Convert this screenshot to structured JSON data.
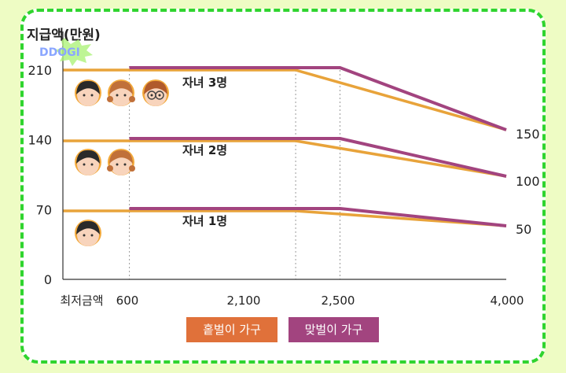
{
  "watermark": "DDOGI",
  "chart_data": {
    "type": "line",
    "ylabel": "지급액(만원)",
    "y_ticks_left": [
      "0",
      "70",
      "140",
      "210"
    ],
    "y_ticks_right": [
      "50",
      "100",
      "150"
    ],
    "x_ticks": [
      "최저금액",
      "600",
      "2,100",
      "2,500",
      "4,000"
    ],
    "xlim": [
      0,
      4000
    ],
    "ylim": [
      0,
      230
    ],
    "legend": [
      {
        "name": "홑벌이 가구",
        "color": "#e8a33a",
        "swatch": "#e0713a"
      },
      {
        "name": "맞벌이 가구",
        "color": "#a2447f",
        "swatch": "#a2447f"
      }
    ],
    "groups": [
      {
        "label": "자녀 3명",
        "children": [
          "boy",
          "girl",
          "glasses"
        ],
        "series": [
          {
            "name": "홑벌이 가구",
            "x": [
              0,
              2100,
              4000
            ],
            "y": [
              210,
              210,
              150
            ]
          },
          {
            "name": "맞벌이 가구",
            "x": [
              600,
              2500,
              4000
            ],
            "y": [
              212,
              212,
              150
            ]
          }
        ]
      },
      {
        "label": "자녀 2명",
        "children": [
          "boy",
          "girl"
        ],
        "series": [
          {
            "name": "홑벌이 가구",
            "x": [
              0,
              2100,
              4000
            ],
            "y": [
              140,
              140,
              100
            ]
          },
          {
            "name": "맞벌이 가구",
            "x": [
              600,
              2500,
              4000
            ],
            "y": [
              142,
              142,
              100
            ]
          }
        ]
      },
      {
        "label": "자녀 1명",
        "children": [
          "boy"
        ],
        "series": [
          {
            "name": "홑벌이 가구",
            "x": [
              0,
              2100,
              4000
            ],
            "y": [
              70,
              70,
              50
            ]
          },
          {
            "name": "맞벌이 가구",
            "x": [
              600,
              2500,
              4000
            ],
            "y": [
              72,
              72,
              50
            ]
          }
        ]
      }
    ],
    "grid": "vertical dashed at 600, 2100, 2500"
  }
}
